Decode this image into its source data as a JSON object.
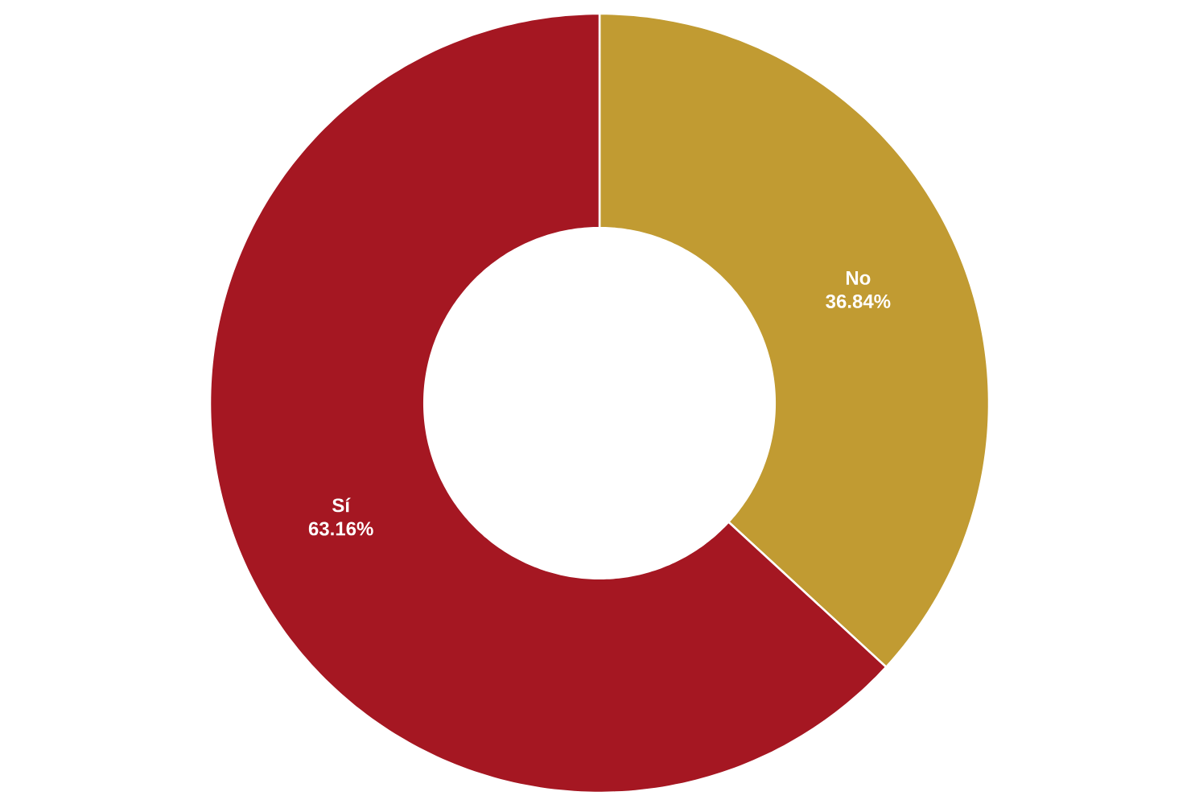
{
  "chart_data": {
    "type": "donut",
    "categories": [
      "No",
      "Sí"
    ],
    "values": [
      36.84,
      63.16
    ],
    "colors": [
      "#c19b32",
      "#a51722"
    ],
    "value_labels": [
      "36.84%",
      "63.16%"
    ]
  }
}
